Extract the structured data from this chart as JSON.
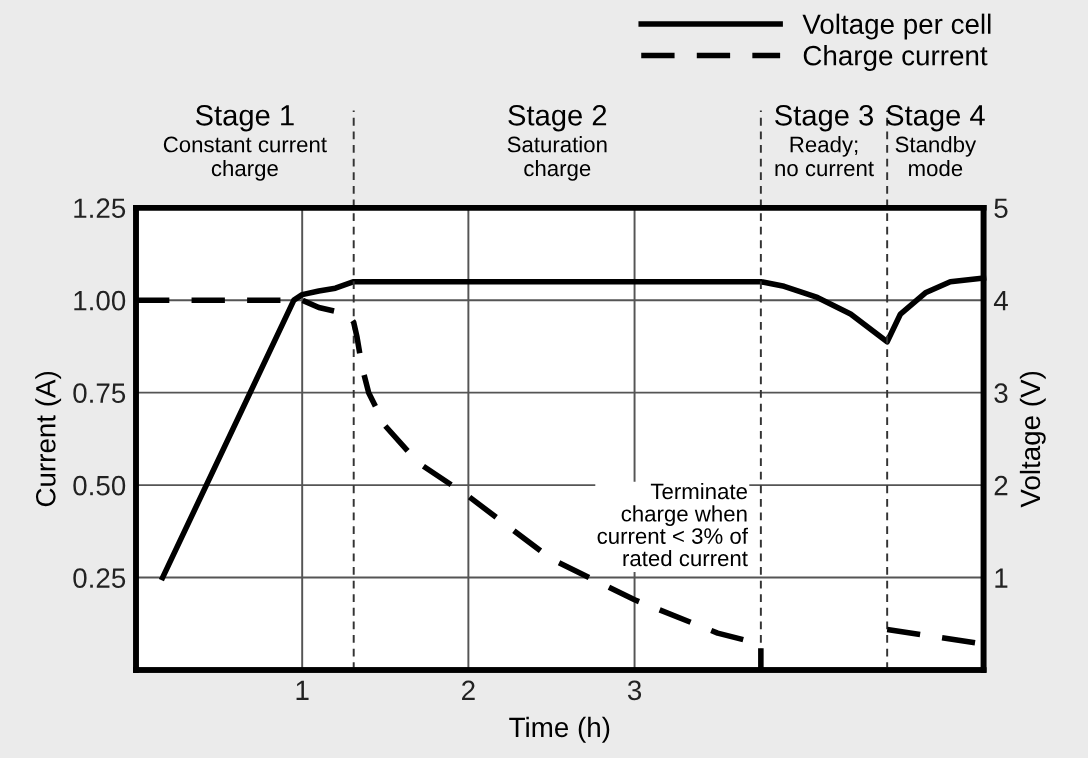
{
  "chart_data": {
    "type": "line",
    "xlabel": "Time (h)",
    "ylabel": "Current (A)",
    "y2label": "Voltage (V)",
    "xlim": [
      0,
      5.1
    ],
    "xticks": [
      1,
      2,
      3
    ],
    "ylim": [
      0,
      1.25
    ],
    "yticks": [
      0.25,
      {
        "value": 0.5,
        "label": "0.50"
      },
      0.75,
      {
        "value": 1.0,
        "label": "1.00"
      },
      1.25
    ],
    "y2lim": [
      0,
      5
    ],
    "y2ticks": [
      1,
      2,
      3,
      4,
      5
    ],
    "grid": true,
    "legend": "top right",
    "marker": "none",
    "series": [
      {
        "name": "Voltage per cell",
        "color": "#000000",
        "axis": "y2",
        "line_style": "solid",
        "x": [
          0.16,
          0.95,
          1.0,
          1.1,
          1.2,
          1.31,
          2.0,
          3.0,
          3.76,
          3.9,
          4.1,
          4.3,
          4.52,
          4.6,
          4.75,
          4.9,
          5.1
        ],
        "values": [
          1.0,
          4.0,
          4.06,
          4.1,
          4.13,
          4.2,
          4.2,
          4.2,
          4.2,
          4.15,
          4.03,
          3.85,
          3.55,
          3.85,
          4.08,
          4.2,
          4.24
        ]
      },
      {
        "name": "Charge current",
        "color": "#000000",
        "line_style": "dashed",
        "x": [
          0,
          0.5,
          1.0,
          1.1,
          1.2,
          1.28,
          1.31,
          1.33,
          1.36,
          1.4,
          1.5,
          1.7,
          2.0,
          2.5,
          3.0,
          3.5,
          3.76,
          3.76,
          3.77,
          4.52,
          5.1
        ],
        "values": [
          1.0,
          1.0,
          1.0,
          0.98,
          0.97,
          0.96,
          0.94,
          0.9,
          0.82,
          0.75,
          0.66,
          0.56,
          0.47,
          0.3,
          0.19,
          0.1,
          0.07,
          0.0,
          null,
          0.11,
          0.07
        ]
      }
    ],
    "ref_lines": [
      {
        "axis": "x",
        "value": 1.31,
        "line_style": "dashed"
      },
      {
        "axis": "x",
        "value": 3.76,
        "line_style": "dashed"
      },
      {
        "axis": "x",
        "value": 4.52,
        "line_style": "dashed"
      }
    ],
    "bands": [
      {
        "axis": "x",
        "from": 0,
        "to": 1.31,
        "label": "Stage 1\nConstant current\ncharge",
        "color": "#ffffff"
      },
      {
        "axis": "x",
        "from": 1.31,
        "to": 3.76,
        "label": "Stage 2\nSaturation\ncharge",
        "color": "#ffffff"
      },
      {
        "axis": "x",
        "from": 3.76,
        "to": 4.52,
        "label": "Stage 3\nReady;\nno current",
        "color": "#ffffff"
      },
      {
        "axis": "x",
        "from": 4.52,
        "to": 5.1,
        "label": "Stage 4\nStandby\nmode",
        "color": "#ffffff"
      }
    ],
    "annotations": [
      "Terminate\ncharge when\ncurrent < 3% of\nrated current"
    ]
  }
}
